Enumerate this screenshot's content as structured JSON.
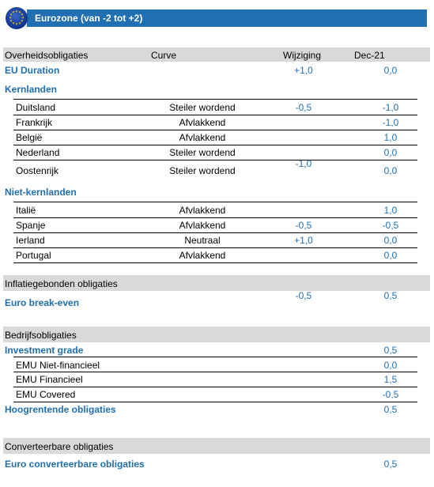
{
  "header": {
    "title": "Eurozone (van -2 tot +2)",
    "flag_icon": "eu-flag-icon"
  },
  "columns": {
    "category": "Overheidsobligaties",
    "curve": "Curve",
    "change": "Wijziging",
    "current": "Dec-21"
  },
  "eu_duration": {
    "label": "EU Duration",
    "change": "+1,0",
    "current": "0,0"
  },
  "core": {
    "heading": "Kernlanden",
    "shared_change": "-1,0",
    "rows": [
      {
        "country": "Duitsland",
        "curve": "Steiler wordend",
        "change": "-0,5",
        "current": "-1,0"
      },
      {
        "country": "Frankrijk",
        "curve": "Afvlakkend",
        "change": "",
        "current": "-1,0"
      },
      {
        "country": "België",
        "curve": "Afvlakkend",
        "change": "",
        "current": "1,0"
      },
      {
        "country": "Nederland",
        "curve": "Steiler wordend",
        "change": "",
        "current": "0,0"
      },
      {
        "country": "Oostenrijk",
        "curve": "Steiler wordend",
        "change": "",
        "current": "0,0"
      }
    ]
  },
  "non_core": {
    "heading": "Niet-kernlanden",
    "rows": [
      {
        "country": "Italië",
        "curve": "Afvlakkend",
        "change": "",
        "current": "1,0"
      },
      {
        "country": "Spanje",
        "curve": "Afvlakkend",
        "change": "-0,5",
        "current": "-0,5"
      },
      {
        "country": "Ierland",
        "curve": "Neutraal",
        "change": "+1,0",
        "current": "0,0"
      },
      {
        "country": "Portugal",
        "curve": "Afvlakkend",
        "change": "",
        "current": "0,0"
      }
    ]
  },
  "inflation": {
    "heading": "Inflatiegebonden obligaties",
    "item": {
      "label": "Euro break-even",
      "change": "-0,5",
      "current": "0,5"
    }
  },
  "corporate": {
    "heading": "Bedrijfsobligaties",
    "investment_grade": {
      "label": "Investment grade",
      "current": "0,5"
    },
    "rows": [
      {
        "label": "EMU Niet-financieel",
        "current": "0,0"
      },
      {
        "label": "EMU Financieel",
        "current": "1,5"
      },
      {
        "label": "EMU Covered",
        "current": "-0,5"
      }
    ],
    "high_yield": {
      "label": "Hoogrentende obligaties",
      "current": "0,5"
    }
  },
  "convertibles": {
    "heading": "Converteerbare obligaties",
    "item": {
      "label": "Euro converteerbare obligaties",
      "current": "0,5"
    }
  }
}
